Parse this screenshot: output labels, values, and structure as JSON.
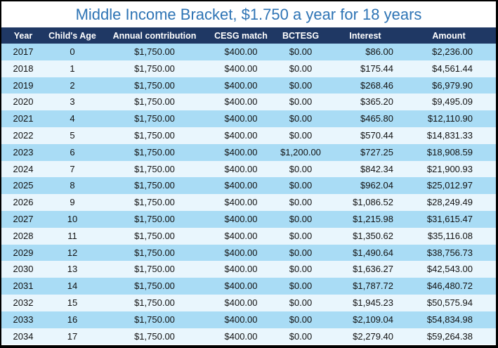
{
  "title": "Middle Income Bracket, $1.750 a year for 18 years",
  "colors": {
    "title_text": "#2E74B5",
    "header_bg": "#1F3864",
    "header_text": "#FFFFFF",
    "row_dark": "#A9DCF5",
    "row_light": "#E9F6FD",
    "cell_text": "#121212",
    "border": "#000000"
  },
  "chart_data": {
    "type": "table",
    "title": "Middle Income Bracket, $1.750 a year for 18 years",
    "columns": [
      "Year",
      "Child's Age",
      "Annual contribution",
      "CESG match",
      "BCTESG",
      "Interest",
      "Amount"
    ],
    "rows": [
      [
        "2017",
        "0",
        "$1,750.00",
        "$400.00",
        "$0.00",
        "$86.00",
        "$2,236.00"
      ],
      [
        "2018",
        "1",
        "$1,750.00",
        "$400.00",
        "$0.00",
        "$175.44",
        "$4,561.44"
      ],
      [
        "2019",
        "2",
        "$1,750.00",
        "$400.00",
        "$0.00",
        "$268.46",
        "$6,979.90"
      ],
      [
        "2020",
        "3",
        "$1,750.00",
        "$400.00",
        "$0.00",
        "$365.20",
        "$9,495.09"
      ],
      [
        "2021",
        "4",
        "$1,750.00",
        "$400.00",
        "$0.00",
        "$465.80",
        "$12,110.90"
      ],
      [
        "2022",
        "5",
        "$1,750.00",
        "$400.00",
        "$0.00",
        "$570.44",
        "$14,831.33"
      ],
      [
        "2023",
        "6",
        "$1,750.00",
        "$400.00",
        "$1,200.00",
        "$727.25",
        "$18,908.59"
      ],
      [
        "2024",
        "7",
        "$1,750.00",
        "$400.00",
        "$0.00",
        "$842.34",
        "$21,900.93"
      ],
      [
        "2025",
        "8",
        "$1,750.00",
        "$400.00",
        "$0.00",
        "$962.04",
        "$25,012.97"
      ],
      [
        "2026",
        "9",
        "$1,750.00",
        "$400.00",
        "$0.00",
        "$1,086.52",
        "$28,249.49"
      ],
      [
        "2027",
        "10",
        "$1,750.00",
        "$400.00",
        "$0.00",
        "$1,215.98",
        "$31,615.47"
      ],
      [
        "2028",
        "11",
        "$1,750.00",
        "$400.00",
        "$0.00",
        "$1,350.62",
        "$35,116.08"
      ],
      [
        "2029",
        "12",
        "$1,750.00",
        "$400.00",
        "$0.00",
        "$1,490.64",
        "$38,756.73"
      ],
      [
        "2030",
        "13",
        "$1,750.00",
        "$400.00",
        "$0.00",
        "$1,636.27",
        "$42,543.00"
      ],
      [
        "2031",
        "14",
        "$1,750.00",
        "$400.00",
        "$0.00",
        "$1,787.72",
        "$46,480.72"
      ],
      [
        "2032",
        "15",
        "$1,750.00",
        "$400.00",
        "$0.00",
        "$1,945.23",
        "$50,575.94"
      ],
      [
        "2033",
        "16",
        "$1,750.00",
        "$400.00",
        "$0.00",
        "$2,109.04",
        "$54,834.98"
      ],
      [
        "2034",
        "17",
        "$1,750.00",
        "$400.00",
        "$0.00",
        "$2,279.40",
        "$59,264.38"
      ]
    ],
    "column_keys": [
      "year",
      "childs-age",
      "annual-contribution",
      "cesg-match",
      "bctesg",
      "interest",
      "amount"
    ]
  }
}
